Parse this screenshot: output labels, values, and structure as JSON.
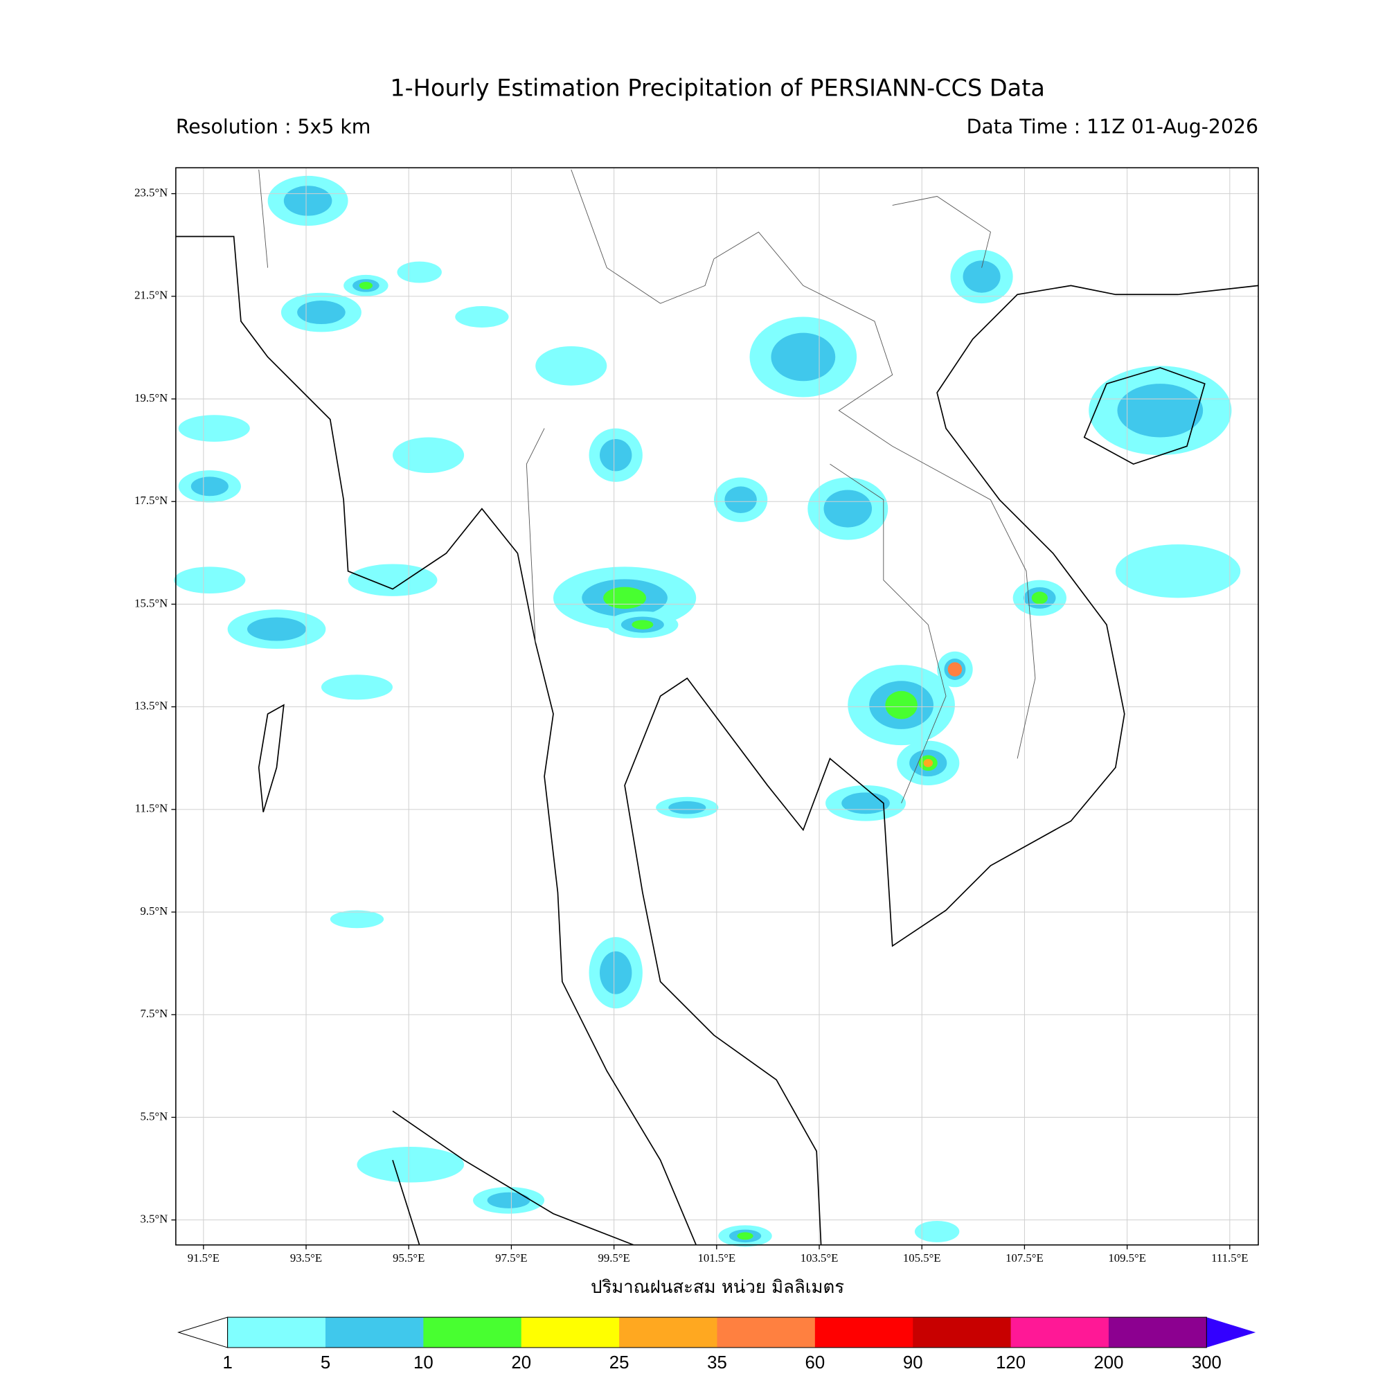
{
  "header": {
    "title": "1-Hourly Estimation Precipitation of PERSIANN-CCS Data",
    "resolution": "Resolution : 5x5 km",
    "data_time": "Data Time : 11Z 01-Aug-2026"
  },
  "map": {
    "lat_labels": [
      "23.5°N",
      "21.5°N",
      "19.5°N",
      "17.5°N",
      "15.5°N",
      "13.5°N",
      "11.5°N",
      "9.5°N",
      "7.5°N",
      "5.5°N",
      "3.5°N"
    ],
    "lon_labels": [
      "91.5°E",
      "93.5°E",
      "95.5°E",
      "97.5°E",
      "99.5°E",
      "101.5°E",
      "103.5°E",
      "105.5°E",
      "107.5°E",
      "109.5°E",
      "111.5°E"
    ],
    "axis_label": "ปริมาณฝนสะสม หน่วย มิลลิเมตร"
  },
  "colorbar": {
    "levels": [
      1,
      5,
      10,
      20,
      25,
      35,
      60,
      90,
      120,
      200,
      300
    ],
    "colors": [
      "#80ffff",
      "#40c8ec",
      "#48ff30",
      "#ffff00",
      "#ffa820",
      "#ff8040",
      "#ff0000",
      "#c80000",
      "#ff1896",
      "#8c0090"
    ],
    "under_color": "#ffffff",
    "over_color": "#3300ff"
  }
}
